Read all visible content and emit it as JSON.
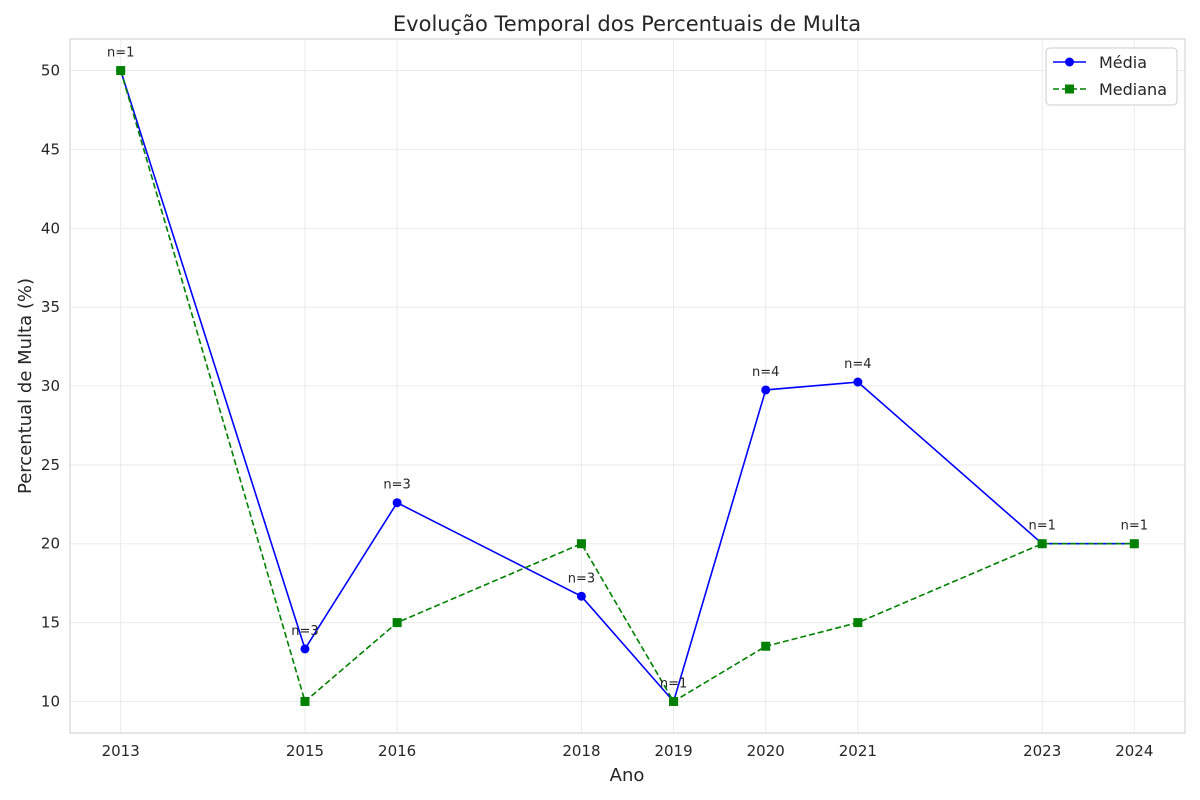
{
  "chart_data": {
    "type": "line",
    "title": "Evolução Temporal dos Percentuais de Multa",
    "xlabel": "Ano",
    "ylabel": "Percentual de Multa (%)",
    "x": [
      2013,
      2015,
      2016,
      2018,
      2019,
      2020,
      2021,
      2023,
      2024
    ],
    "xlim": [
      2012.45,
      2024.55
    ],
    "ylim": [
      8,
      52
    ],
    "yticks": [
      10,
      15,
      20,
      25,
      30,
      35,
      40,
      45,
      50
    ],
    "grid": true,
    "legend_position": "top-right",
    "series": [
      {
        "name": "Média",
        "color": "#0000ff",
        "marker": "circle",
        "linestyle": "solid",
        "values": [
          50,
          13.33,
          22.6,
          16.67,
          10,
          29.75,
          30.25,
          20,
          20
        ]
      },
      {
        "name": "Mediana",
        "color": "#008000",
        "marker": "square",
        "linestyle": "dashed",
        "values": [
          50,
          10,
          15,
          20,
          10,
          13.5,
          15,
          20,
          20
        ]
      }
    ],
    "annotations": [
      "n=1",
      "n=3",
      "n=3",
      "n=3",
      "n=1",
      "n=4",
      "n=4",
      "n=1",
      "n=1"
    ]
  }
}
